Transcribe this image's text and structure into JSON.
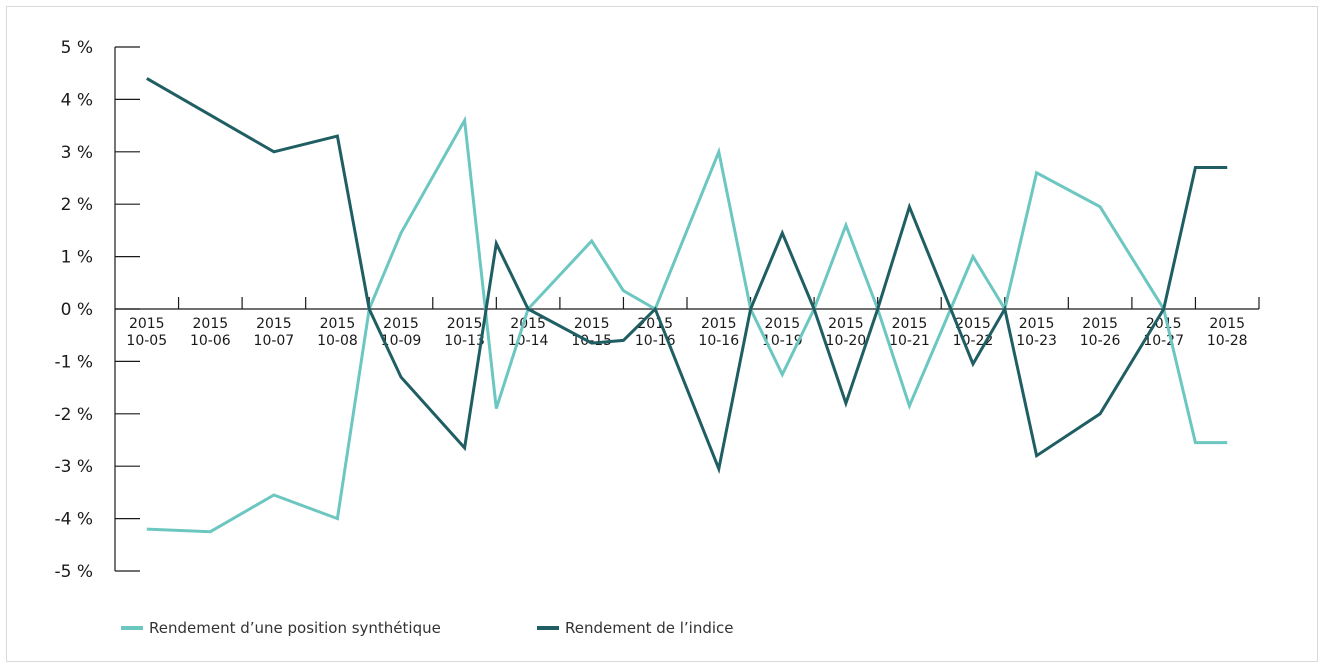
{
  "chart_data": {
    "type": "line",
    "title": "",
    "xlabel": "",
    "ylabel": "",
    "categories": [
      [
        "2015",
        "10-05"
      ],
      [
        "2015",
        "10-06"
      ],
      [
        "2015",
        "10-07"
      ],
      [
        "2015",
        "10-08"
      ],
      [
        "2015",
        "10-09"
      ],
      [
        "2015",
        "10-13"
      ],
      [
        "2015",
        "10-14"
      ],
      [
        "2015",
        "10-15"
      ],
      [
        "2015",
        "10-16"
      ],
      [
        "2015",
        "10-16"
      ],
      [
        "2015",
        "10-19"
      ],
      [
        "2015",
        "10-20"
      ],
      [
        "2015",
        "10-21"
      ],
      [
        "2015",
        "10-22"
      ],
      [
        "2015",
        "10-23"
      ],
      [
        "2015",
        "10-26"
      ],
      [
        "2015",
        "10-27"
      ],
      [
        "2015",
        "10-28"
      ]
    ],
    "x": [
      0.5,
      1.5,
      2.5,
      3.5,
      4,
      4.5,
      5.5,
      6,
      6.5,
      7.5,
      8,
      8.5,
      9.5,
      10,
      10.5,
      11,
      11.5,
      12,
      12.5,
      13.5,
      14,
      14.5,
      15.5,
      16.5,
      17,
      17.5
    ],
    "series": [
      {
        "name": "Rendement d’une position synthétique",
        "color": "#6cc7c1",
        "values": [
          -4.2,
          -4.25,
          -3.55,
          -4.0,
          0,
          1.45,
          3.6,
          -1.9,
          0,
          1.3,
          0.35,
          0,
          3.0,
          0,
          -1.25,
          0,
          1.6,
          0,
          -1.85,
          1.0,
          0,
          2.6,
          1.95,
          0,
          -2.55,
          -2.55
        ]
      },
      {
        "name": "Rendement de l’indice",
        "color": "#1f5e62",
        "values": [
          4.4,
          3.7,
          3.0,
          3.3,
          0,
          -1.3,
          -2.65,
          1.25,
          0,
          -0.65,
          -0.6,
          0,
          -3.05,
          0,
          1.45,
          0,
          -1.8,
          0,
          1.95,
          -1.05,
          0,
          -2.8,
          -2.0,
          0,
          2.7,
          2.7
        ]
      }
    ],
    "y_ticks": [
      {
        "value": 5,
        "label": "5 %"
      },
      {
        "value": 4,
        "label": "4 %"
      },
      {
        "value": 3,
        "label": "3 %"
      },
      {
        "value": 2,
        "label": "2 %"
      },
      {
        "value": 1,
        "label": "1 %"
      },
      {
        "value": 0,
        "label": "0 %"
      },
      {
        "value": -1,
        "label": "-1 %"
      },
      {
        "value": -2,
        "label": "-2 %"
      },
      {
        "value": -3,
        "label": "-3 %"
      },
      {
        "value": -4,
        "label": "-4 %"
      },
      {
        "value": -5,
        "label": "-5 %"
      }
    ],
    "ylim": [
      -5,
      5
    ],
    "xlim": [
      0,
      18
    ],
    "grid": false,
    "legend": {
      "position": "bottom-left"
    }
  }
}
